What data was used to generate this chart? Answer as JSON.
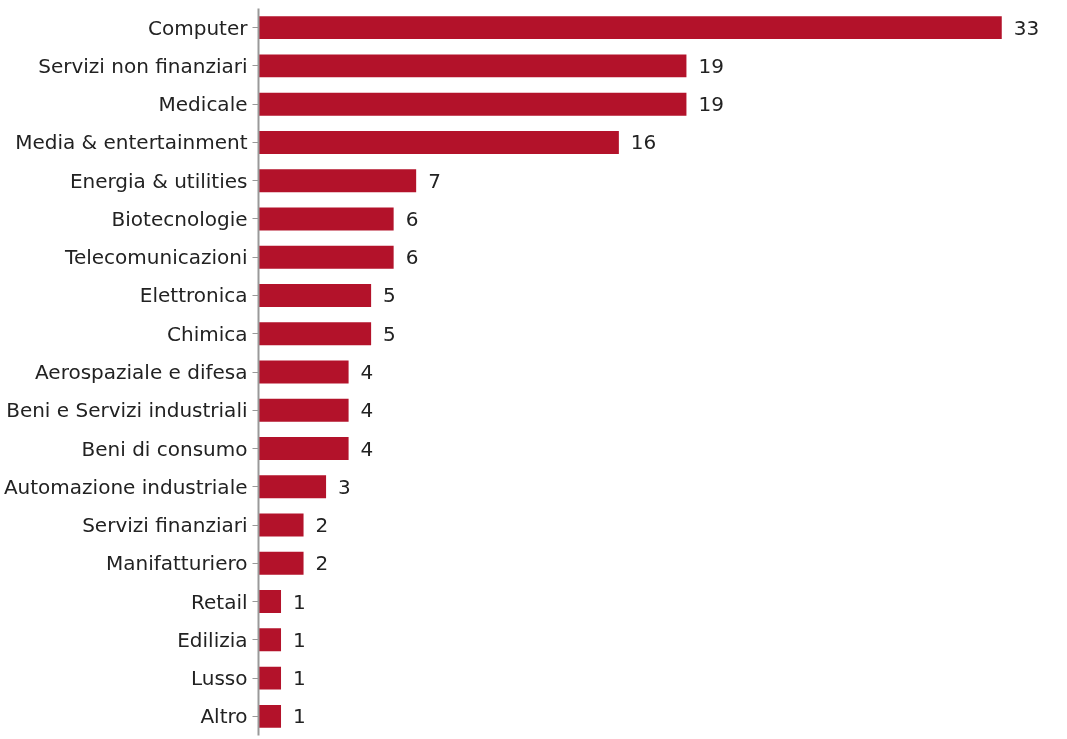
{
  "chart_data": {
    "type": "bar",
    "orientation": "horizontal",
    "data_labels": true,
    "color": "#b3122a",
    "categories": [
      "Computer",
      "Servizi non finanziari",
      "Medicale",
      "Media & entertainment",
      "Energia & utilities",
      "Biotecnologie",
      "Telecomunicazioni",
      "Elettronica",
      "Chimica",
      "Aerospaziale e difesa",
      "Beni e Servizi industriali",
      "Beni di consumo",
      "Automazione industriale",
      "Servizi finanziari",
      "Manifatturiero",
      "Retail",
      "Edilizia",
      "Lusso",
      "Altro"
    ],
    "values": [
      33,
      19,
      19,
      16,
      7,
      6,
      6,
      5,
      5,
      4,
      4,
      4,
      3,
      2,
      2,
      1,
      1,
      1,
      1
    ]
  }
}
